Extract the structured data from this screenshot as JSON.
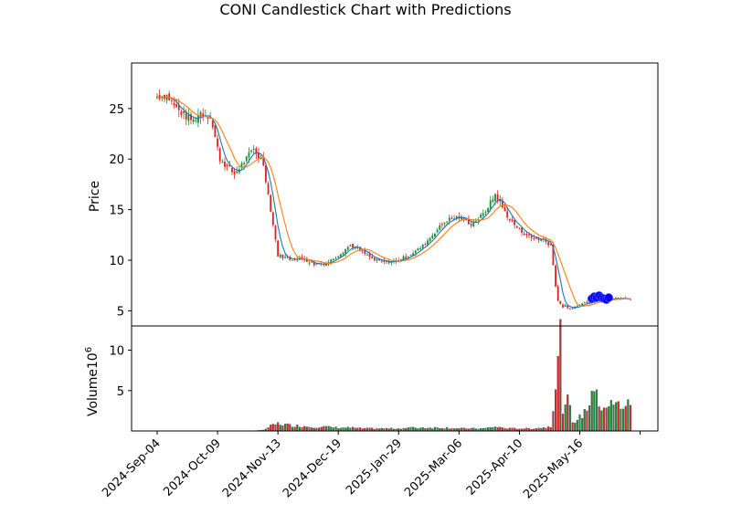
{
  "chart_data": {
    "type": "candlestick",
    "title": "CONI Candlestick Chart with Predictions",
    "price_panel": {
      "ylabel": "Price",
      "ylim": [
        3.5,
        29.5
      ],
      "yticks": [
        5,
        10,
        15,
        20,
        25
      ],
      "grid": false
    },
    "volume_panel": {
      "ylabel": "Volume",
      "multiplier_label": "10",
      "multiplier_exp": "6",
      "ylim": [
        0,
        13
      ],
      "yticks": [
        5,
        10
      ]
    },
    "x_tick_labels": [
      "2024-Sep-04",
      "2024-Oct-09",
      "2024-Nov-13",
      "2024-Dec-19",
      "2025-Jan-29",
      "2025-Mar-06",
      "2025-Apr-10",
      "2025-May-16"
    ],
    "x_tick_index": [
      0,
      25,
      50,
      75,
      100,
      125,
      150,
      175
    ],
    "n_days": 197,
    "up_color": "#1f8c3b",
    "down_color": "#d62728",
    "ma_short_color": "#1f77b4",
    "ma_long_color": "#ff7f0e",
    "prediction_color": "#0000ff",
    "anchors": [
      [
        0,
        26.2,
        0.02
      ],
      [
        4,
        26.3,
        0.02
      ],
      [
        8,
        25.0,
        0.02
      ],
      [
        12,
        24.2,
        0.02
      ],
      [
        15,
        23.8,
        0.02
      ],
      [
        18,
        24.6,
        0.02
      ],
      [
        22,
        24.2,
        0.02
      ],
      [
        26,
        20.0,
        0.02
      ],
      [
        32,
        18.5,
        0.02
      ],
      [
        40,
        21.0,
        0.04
      ],
      [
        44,
        19.5,
        0.1
      ],
      [
        47,
        15.0,
        0.6
      ],
      [
        50,
        10.5,
        0.9
      ],
      [
        55,
        10.1,
        0.7
      ],
      [
        60,
        10.2,
        0.6
      ],
      [
        65,
        9.6,
        0.5
      ],
      [
        70,
        9.7,
        0.5
      ],
      [
        75,
        10.5,
        0.4
      ],
      [
        80,
        11.5,
        0.4
      ],
      [
        85,
        10.8,
        0.3
      ],
      [
        90,
        10.0,
        0.3
      ],
      [
        95,
        9.8,
        0.3
      ],
      [
        100,
        10.0,
        0.3
      ],
      [
        105,
        10.6,
        0.4
      ],
      [
        110,
        11.4,
        0.4
      ],
      [
        115,
        12.8,
        0.4
      ],
      [
        120,
        14.0,
        0.4
      ],
      [
        125,
        14.3,
        0.3
      ],
      [
        130,
        13.6,
        0.3
      ],
      [
        135,
        14.5,
        0.3
      ],
      [
        140,
        16.5,
        0.5
      ],
      [
        143,
        15.2,
        0.4
      ],
      [
        146,
        14.0,
        0.3
      ],
      [
        150,
        13.0,
        0.3
      ],
      [
        155,
        12.2,
        0.3
      ],
      [
        160,
        12.0,
        0.4
      ],
      [
        163,
        11.5,
        0.6
      ],
      [
        165,
        7.5,
        5.8
      ],
      [
        166,
        6.0,
        8.4
      ],
      [
        167,
        5.6,
        11.3
      ],
      [
        168,
        5.4,
        3.0
      ],
      [
        169,
        5.5,
        2.5
      ],
      [
        170,
        5.2,
        3.9
      ],
      [
        172,
        5.3,
        1.2
      ],
      [
        175,
        5.6,
        1.6
      ],
      [
        177,
        5.8,
        2.4
      ],
      [
        179,
        5.9,
        3.5
      ],
      [
        180,
        5.9,
        5.8
      ],
      [
        181,
        6.0,
        4.8
      ],
      [
        183,
        6.1,
        3.3
      ],
      [
        184,
        6.2,
        3.2
      ]
    ],
    "predictions": [
      [
        180,
        6.2
      ],
      [
        181,
        6.4
      ],
      [
        182,
        6.3
      ],
      [
        183,
        6.5
      ],
      [
        184,
        6.3
      ],
      [
        185,
        6.2
      ],
      [
        186,
        6.1
      ],
      [
        187,
        6.3
      ]
    ]
  }
}
